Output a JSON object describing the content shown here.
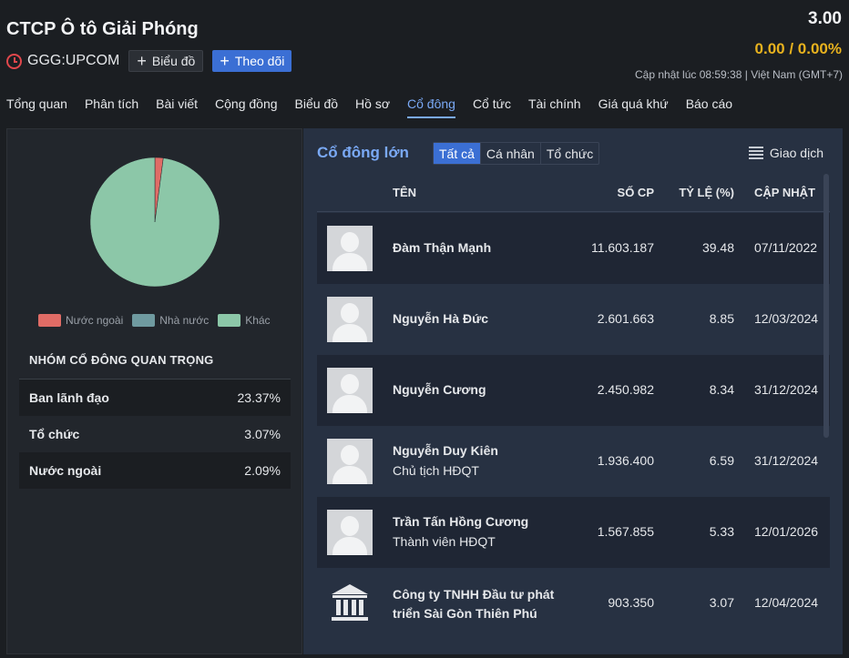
{
  "header": {
    "company_name": "CTCP Ô tô Giải Phóng",
    "ticker": "GGG:UPCOM",
    "chart_button": "Biểu đồ",
    "follow_button": "Theo dõi",
    "price": "3.00",
    "change": "0.00 / 0.00%",
    "update_text": "Cập nhật lúc  08:59:38 | Việt Nam (GMT+7)"
  },
  "tabs": [
    {
      "label": "Tổng quan"
    },
    {
      "label": "Phân tích"
    },
    {
      "label": "Bài viết"
    },
    {
      "label": "Cộng đồng"
    },
    {
      "label": "Biểu đồ"
    },
    {
      "label": "Hồ sơ"
    },
    {
      "label": "Cổ đông"
    },
    {
      "label": "Cổ tức"
    },
    {
      "label": "Tài chính"
    },
    {
      "label": "Giá quá khứ"
    },
    {
      "label": "Báo cáo"
    }
  ],
  "active_tab": "Cổ đông",
  "ownership": {
    "legend": [
      {
        "label": "Nước ngoài",
        "color": "#e06c66"
      },
      {
        "label": "Nhà nước",
        "color": "#6f9aa0"
      },
      {
        "label": "Khác",
        "color": "#8cc7a8"
      }
    ],
    "slices": [
      {
        "label": "Nước ngoài",
        "value": 2.09
      },
      {
        "label": "Nhà nước",
        "value": 0
      },
      {
        "label": "Khác",
        "value": 97.91
      }
    ],
    "group_title": "NHÓM CỔ ĐÔNG QUAN TRỌNG",
    "groups": [
      {
        "label": "Ban lãnh đạo",
        "value": "23.37%"
      },
      {
        "label": "Tổ chức",
        "value": "3.07%"
      },
      {
        "label": "Nước ngoài",
        "value": "2.09%"
      }
    ]
  },
  "shareholders": {
    "title": "Cổ đông lớn",
    "filters": [
      "Tất cả",
      "Cá nhân",
      "Tổ chức"
    ],
    "active_filter": "Tất cả",
    "transactions_label": "Giao dịch",
    "columns": {
      "name": "TÊN",
      "shares": "SỐ CP",
      "ratio": "TỶ LỆ (%)",
      "updated": "CẬP NHẬT"
    },
    "rows": [
      {
        "name": "Đàm Thận Mạnh",
        "role": "",
        "shares": "11.603.187",
        "ratio": "39.48",
        "date": "07/11/2022"
      },
      {
        "name": "Nguyễn Hà Đức",
        "role": "",
        "shares": "2.601.663",
        "ratio": "8.85",
        "date": "12/03/2024"
      },
      {
        "name": "Nguyễn Cương",
        "role": "",
        "shares": "2.450.982",
        "ratio": "8.34",
        "date": "31/12/2024"
      },
      {
        "name": "Nguyễn Duy Kiên",
        "role": "Chủ tịch HĐQT",
        "shares": "1.936.400",
        "ratio": "6.59",
        "date": "31/12/2024"
      },
      {
        "name": "Trần Tấn Hồng Cương",
        "role": "Thành viên HĐQT",
        "shares": "1.567.855",
        "ratio": "5.33",
        "date": "12/01/2026"
      },
      {
        "name": "Công ty TNHH Đầu tư phát triển Sài Gòn Thiên Phú",
        "role": "",
        "shares": "903.350",
        "ratio": "3.07",
        "date": "12/04/2024"
      }
    ]
  }
}
